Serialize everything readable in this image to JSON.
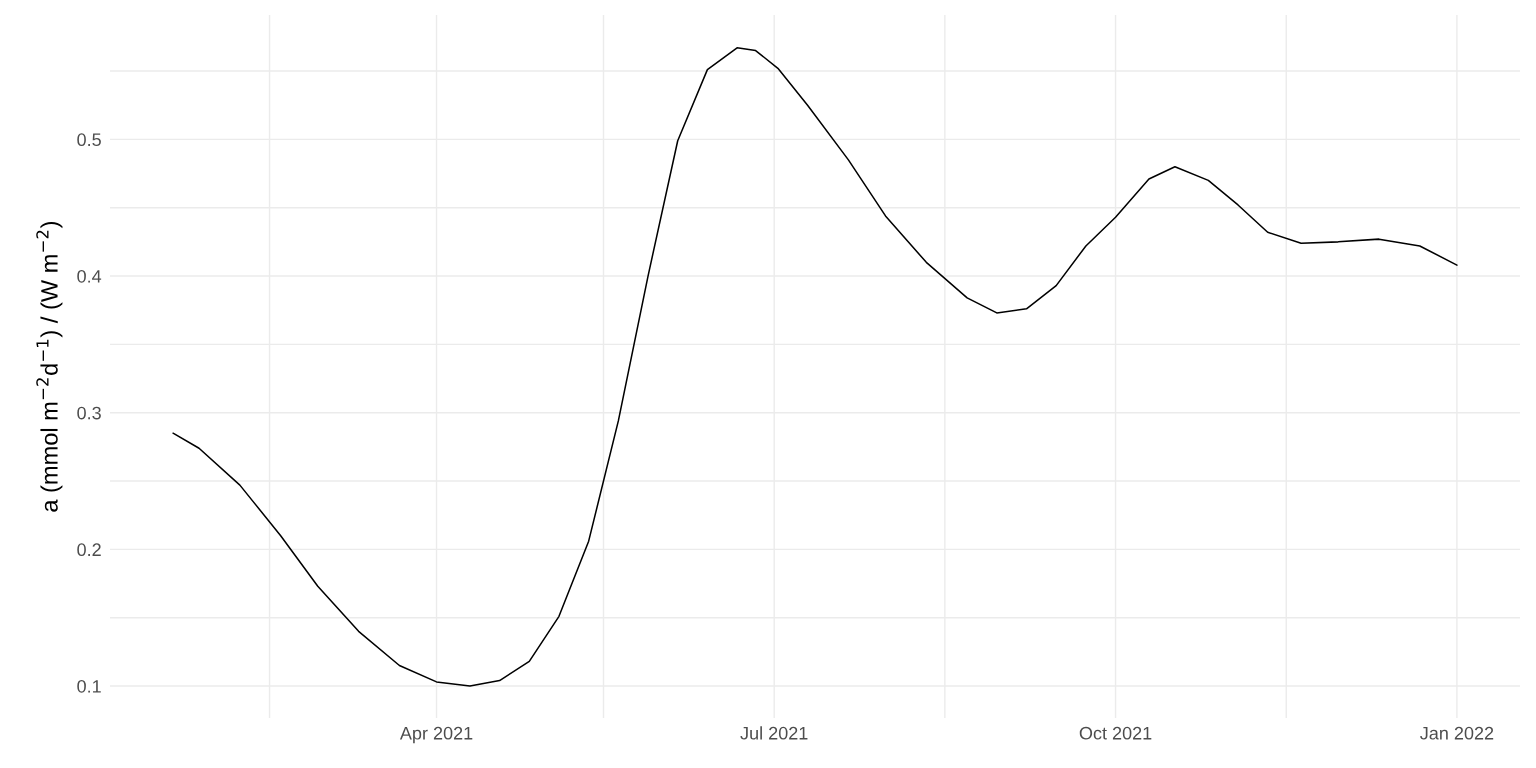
{
  "chart_data": {
    "type": "line",
    "ylabel": "a (mmol m$^{−2}$d$^{−1}$) / (W m$^{−2}$)",
    "x": [
      "2021-01-20",
      "2021-01-27",
      "2021-02-07",
      "2021-02-18",
      "2021-02-28",
      "2021-03-11",
      "2021-03-22",
      "2021-04-01",
      "2021-04-10",
      "2021-04-18",
      "2021-04-26",
      "2021-05-04",
      "2021-05-12",
      "2021-05-20",
      "2021-05-28",
      "2021-06-05",
      "2021-06-13",
      "2021-06-21",
      "2021-06-26",
      "2021-07-02",
      "2021-07-10",
      "2021-07-21",
      "2021-07-31",
      "2021-08-11",
      "2021-08-22",
      "2021-08-30",
      "2021-09-07",
      "2021-09-15",
      "2021-09-23",
      "2021-10-01",
      "2021-10-10",
      "2021-10-17",
      "2021-10-26",
      "2021-11-03",
      "2021-11-11",
      "2021-11-20",
      "2021-11-30",
      "2021-12-11",
      "2021-12-22",
      "2022-01-01"
    ],
    "series": [
      {
        "color": "#000000",
        "values": [
          0.285,
          0.274,
          0.247,
          0.21,
          0.173,
          0.14,
          0.115,
          0.103,
          0.1,
          0.104,
          0.118,
          0.151,
          0.206,
          0.294,
          0.4,
          0.499,
          0.551,
          0.567,
          0.565,
          0.552,
          0.525,
          0.485,
          0.444,
          0.41,
          0.384,
          0.373,
          0.376,
          0.393,
          0.422,
          0.443,
          0.471,
          0.48,
          0.47,
          0.452,
          0.432,
          0.424,
          0.425,
          0.427,
          0.422,
          0.408
        ]
      }
    ],
    "xlim": [
      "2021-01-03",
      "2022-01-18"
    ],
    "xticks": [
      {
        "value": "2021-02-15",
        "label": null
      },
      {
        "value": "2021-04-01",
        "label": "Apr 2021"
      },
      {
        "value": "2021-05-16",
        "label": null
      },
      {
        "value": "2021-07-01",
        "label": "Jul 2021"
      },
      {
        "value": "2021-08-16",
        "label": null
      },
      {
        "value": "2021-10-01",
        "label": "Oct 2021"
      },
      {
        "value": "2021-11-16",
        "label": null
      },
      {
        "value": "2022-01-01",
        "label": "Jan 2022"
      }
    ],
    "ylim": [
      0.0766,
      0.591
    ],
    "yticks": [
      0.1,
      {
        "value": 0.15,
        "label": null
      },
      0.2,
      {
        "value": 0.25,
        "label": null
      },
      0.3,
      {
        "value": 0.35,
        "label": null
      },
      0.4,
      {
        "value": 0.45,
        "label": null
      },
      0.5,
      {
        "value": 0.55,
        "label": null
      }
    ],
    "grid": true,
    "line_style": "solid",
    "marker": "none"
  }
}
